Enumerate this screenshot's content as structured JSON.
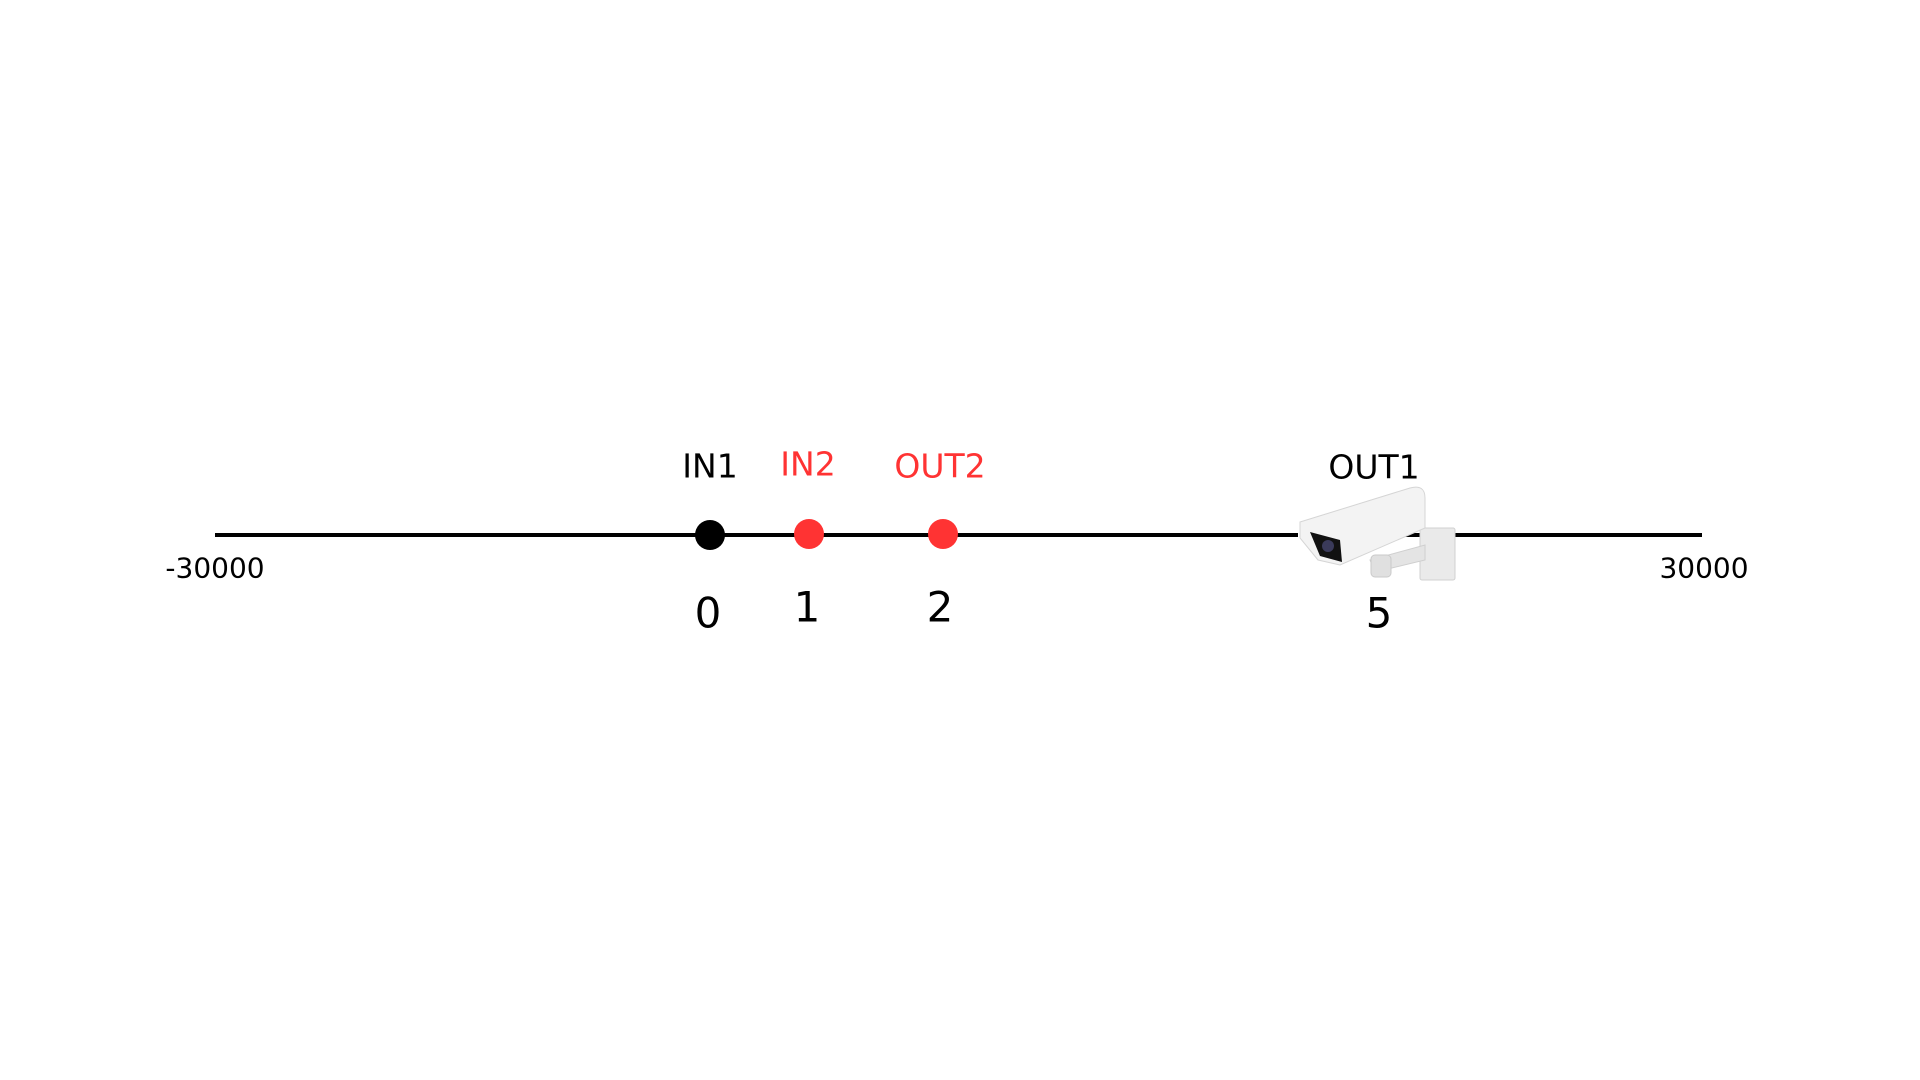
{
  "axis": {
    "min_label": "-30000",
    "max_label": "30000"
  },
  "colors": {
    "line": "#000000",
    "black": "#000000",
    "red": "#ff3333"
  },
  "points": [
    {
      "label": "IN1",
      "index": "0",
      "color": "black",
      "marker": "dot"
    },
    {
      "label": "IN2",
      "index": "1",
      "color": "red",
      "marker": "dot"
    },
    {
      "label": "OUT2",
      "index": "2",
      "color": "red",
      "marker": "dot"
    },
    {
      "label": "OUT1",
      "index": "5",
      "color": "black",
      "marker": "security-camera-icon"
    }
  ]
}
